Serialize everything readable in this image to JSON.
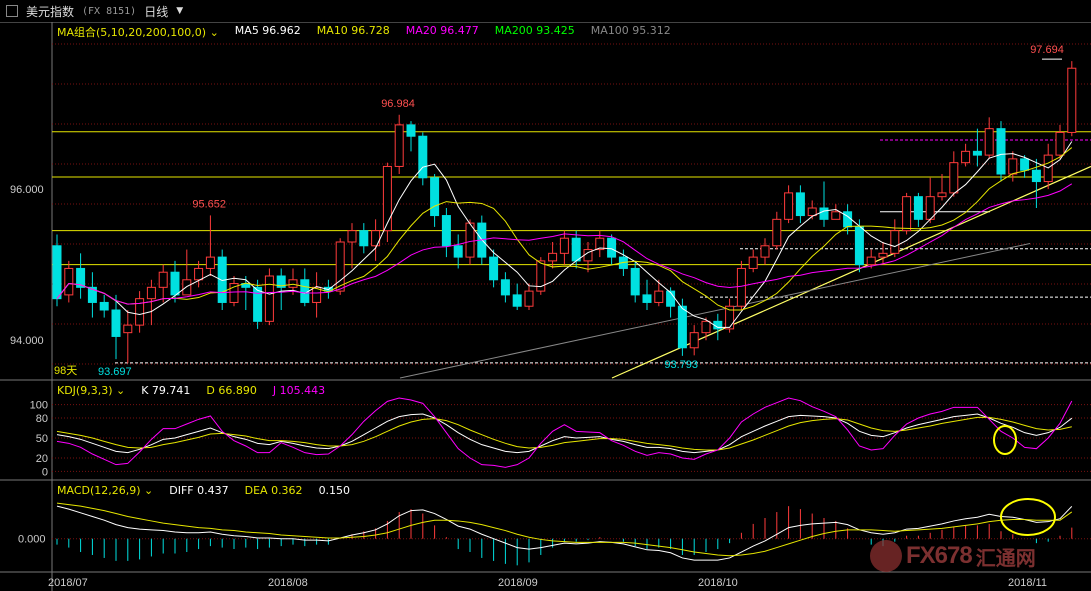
{
  "window": {
    "title": "美元指数",
    "code": "(FX 8151)",
    "period": "日线"
  },
  "colors": {
    "up": "#ff3b3b",
    "down": "#00e0e0",
    "ma5": "#ffffff",
    "ma10": "#e6e600",
    "ma20": "#ff00ff",
    "ma200": "#00ff00",
    "ma100": "#888888",
    "grid": "#7a1010",
    "hline": "#e6e600",
    "k": "#ffffff",
    "d": "#e6e600",
    "j": "#ff00ff"
  },
  "indicators": {
    "ma_group": "MA组合(5,10,20,200,100,0)",
    "ma5": "MA5 96.962",
    "ma10": "MA10 96.728",
    "ma20": "MA20 96.477",
    "ma200": "MA200 93.425",
    "ma100": "MA100 95.312",
    "kdj": "KDJ(9,3,3)",
    "k": "K 79.741",
    "d": "D 66.890",
    "j": "J 105.443",
    "macd": "MACD(12,26,9)",
    "diff": "DIFF 0.437",
    "dea": "DEA 0.362",
    "macd_val": "0.150"
  },
  "watermark": {
    "text": "FX678",
    "text2": "汇通网"
  },
  "chart_data": [
    {
      "type": "candlestick",
      "price_axis": {
        "ticks": [
          96.0,
          94.0
        ],
        "tick_labels": [
          "96.000",
          "94.000"
        ]
      },
      "x_axis": {
        "ticks": [
          "2018/07",
          "2018/08",
          "2018/09",
          "2018/10",
          "2018/11"
        ]
      },
      "annotations": [
        {
          "label": "97.694",
          "value": 97.694,
          "kind": "high",
          "bar": 84
        },
        {
          "label": "96.984",
          "value": 96.984,
          "kind": "high",
          "bar": 29
        },
        {
          "label": "95.652",
          "value": 95.652,
          "kind": "high",
          "bar": 13
        },
        {
          "label": "93.697",
          "value": 93.697,
          "kind": "low",
          "bar": 5
        },
        {
          "label": "93.793",
          "value": 93.793,
          "kind": "low",
          "bar": 53
        },
        {
          "label": "98天",
          "kind": "text"
        }
      ],
      "horizontal_lines": [
        96.76,
        96.16,
        95.45,
        95.0
      ],
      "candles": [
        [
          95.25,
          94.55,
          95.4,
          94.45
        ],
        [
          94.6,
          94.95,
          95.05,
          94.5
        ],
        [
          94.95,
          94.7,
          95.15,
          94.55
        ],
        [
          94.7,
          94.5,
          94.9,
          94.3
        ],
        [
          94.5,
          94.4,
          94.6,
          94.3
        ],
        [
          94.4,
          94.05,
          94.6,
          93.75
        ],
        [
          94.1,
          94.2,
          94.4,
          93.697
        ],
        [
          94.2,
          94.55,
          94.65,
          94.1
        ],
        [
          94.55,
          94.7,
          94.8,
          94.2
        ],
        [
          94.7,
          94.9,
          95.0,
          94.5
        ],
        [
          94.9,
          94.6,
          95.05,
          94.5
        ],
        [
          94.6,
          94.8,
          95.2,
          94.6
        ],
        [
          94.8,
          94.95,
          95.05,
          94.7
        ],
        [
          94.95,
          95.1,
          95.652,
          94.85
        ],
        [
          95.1,
          94.5,
          95.2,
          94.4
        ],
        [
          94.5,
          94.75,
          94.85,
          94.45
        ],
        [
          94.75,
          94.7,
          94.85,
          94.4
        ],
        [
          94.7,
          94.25,
          94.8,
          94.15
        ],
        [
          94.25,
          94.85,
          94.95,
          94.2
        ],
        [
          94.85,
          94.7,
          94.95,
          94.4
        ],
        [
          94.7,
          94.8,
          94.95,
          94.6
        ],
        [
          94.8,
          94.5,
          94.95,
          94.45
        ],
        [
          94.5,
          94.7,
          94.9,
          94.3
        ],
        [
          94.7,
          94.65,
          94.8,
          94.55
        ],
        [
          94.65,
          95.3,
          95.35,
          94.6
        ],
        [
          95.3,
          95.45,
          95.55,
          94.95
        ],
        [
          95.45,
          95.25,
          95.55,
          95.15
        ],
        [
          95.25,
          95.45,
          95.6,
          95.05
        ],
        [
          95.45,
          96.3,
          96.35,
          95.3
        ],
        [
          96.3,
          96.85,
          96.984,
          96.2
        ],
        [
          96.85,
          96.7,
          96.9,
          96.5
        ],
        [
          96.7,
          96.15,
          96.75,
          96.05
        ],
        [
          96.15,
          95.65,
          96.2,
          95.5
        ],
        [
          95.65,
          95.25,
          95.75,
          95.1
        ],
        [
          95.25,
          95.1,
          95.4,
          94.95
        ],
        [
          95.1,
          95.55,
          95.6,
          95.0
        ],
        [
          95.55,
          95.1,
          95.65,
          95.0
        ],
        [
          95.1,
          94.8,
          95.2,
          94.7
        ],
        [
          94.8,
          94.6,
          94.9,
          94.5
        ],
        [
          94.6,
          94.45,
          94.75,
          94.4
        ],
        [
          94.45,
          94.65,
          94.75,
          94.4
        ],
        [
          94.65,
          95.05,
          95.1,
          94.6
        ],
        [
          95.05,
          95.15,
          95.3,
          94.95
        ],
        [
          95.15,
          95.35,
          95.45,
          95.0
        ],
        [
          95.35,
          95.05,
          95.45,
          94.95
        ],
        [
          95.05,
          95.2,
          95.3,
          94.9
        ],
        [
          95.2,
          95.35,
          95.45,
          95.1
        ],
        [
          95.35,
          95.1,
          95.4,
          95.0
        ],
        [
          95.1,
          94.95,
          95.2,
          94.85
        ],
        [
          94.95,
          94.6,
          95.05,
          94.5
        ],
        [
          94.6,
          94.5,
          94.8,
          94.4
        ],
        [
          94.5,
          94.65,
          94.8,
          94.45
        ],
        [
          94.65,
          94.45,
          94.7,
          94.3
        ],
        [
          94.45,
          93.9,
          94.55,
          93.793
        ],
        [
          93.9,
          94.1,
          94.2,
          93.8
        ],
        [
          94.1,
          94.25,
          94.3,
          94.0
        ],
        [
          94.25,
          94.15,
          94.35,
          94.0
        ],
        [
          94.15,
          94.45,
          94.55,
          94.1
        ],
        [
          94.45,
          94.95,
          95.05,
          94.4
        ],
        [
          94.95,
          95.1,
          95.2,
          94.9
        ],
        [
          95.1,
          95.25,
          95.35,
          95.0
        ],
        [
          95.25,
          95.6,
          95.7,
          95.2
        ],
        [
          95.6,
          95.95,
          96.05,
          95.55
        ],
        [
          95.95,
          95.65,
          96.05,
          95.55
        ],
        [
          95.65,
          95.75,
          95.85,
          95.6
        ],
        [
          95.75,
          95.6,
          96.1,
          95.5
        ],
        [
          95.6,
          95.7,
          95.8,
          95.6
        ],
        [
          95.7,
          95.5,
          95.8,
          95.4
        ],
        [
          95.5,
          95.0,
          95.6,
          94.9
        ],
        [
          95.0,
          95.1,
          95.2,
          94.95
        ],
        [
          95.1,
          95.15,
          95.3,
          95.0
        ],
        [
          95.15,
          95.45,
          95.6,
          95.1
        ],
        [
          95.45,
          95.9,
          95.95,
          95.4
        ],
        [
          95.9,
          95.6,
          95.95,
          95.5
        ],
        [
          95.6,
          95.9,
          96.15,
          95.55
        ],
        [
          95.9,
          95.95,
          96.2,
          95.85
        ],
        [
          95.95,
          96.35,
          96.5,
          95.9
        ],
        [
          96.35,
          96.5,
          96.6,
          96.3
        ],
        [
          96.5,
          96.45,
          96.8,
          96.3
        ],
        [
          96.45,
          96.8,
          96.95,
          96.4
        ],
        [
          96.8,
          96.2,
          96.9,
          96.1
        ],
        [
          96.2,
          96.4,
          96.5,
          96.1
        ],
        [
          96.4,
          96.25,
          96.45,
          96.15
        ],
        [
          96.25,
          96.1,
          96.4,
          95.75
        ],
        [
          96.1,
          96.45,
          96.6,
          96.0
        ],
        [
          96.45,
          96.75,
          96.85,
          96.4
        ],
        [
          96.75,
          97.6,
          97.694,
          96.7
        ]
      ]
    },
    {
      "type": "line",
      "name": "KDJ",
      "y_ticks": [
        100,
        80,
        50,
        20,
        0
      ],
      "series": [
        {
          "name": "K",
          "values": [
            55,
            52,
            48,
            42,
            36,
            30,
            28,
            33,
            40,
            48,
            50,
            55,
            60,
            65,
            58,
            52,
            48,
            42,
            40,
            45,
            42,
            38,
            35,
            34,
            38,
            45,
            55,
            65,
            75,
            82,
            85,
            86,
            80,
            70,
            58,
            48,
            40,
            35,
            30,
            28,
            30,
            38,
            46,
            52,
            50,
            51,
            52,
            48,
            45,
            40,
            36,
            36,
            34,
            30,
            28,
            30,
            32,
            40,
            52,
            60,
            68,
            75,
            82,
            84,
            83,
            82,
            80,
            72,
            60,
            54,
            52,
            58,
            65,
            70,
            74,
            78,
            82,
            84,
            86,
            80,
            72,
            66,
            58,
            54,
            58,
            66,
            79.741
          ]
        },
        {
          "name": "D",
          "values": [
            60,
            57,
            54,
            50,
            45,
            40,
            36,
            35,
            36,
            40,
            43,
            47,
            51,
            56,
            57,
            55,
            53,
            49,
            46,
            46,
            45,
            43,
            40,
            38,
            38,
            40,
            45,
            52,
            60,
            68,
            74,
            78,
            79,
            76,
            70,
            62,
            55,
            48,
            42,
            37,
            35,
            36,
            39,
            43,
            45,
            47,
            49,
            49,
            48,
            45,
            42,
            40,
            38,
            35,
            33,
            32,
            32,
            35,
            41,
            47,
            54,
            61,
            68,
            73,
            76,
            78,
            79,
            77,
            71,
            65,
            61,
            60,
            62,
            65,
            68,
            72,
            75,
            78,
            81,
            81,
            78,
            74,
            69,
            64,
            62,
            63,
            66.89
          ]
        },
        {
          "name": "J",
          "values": [
            45,
            42,
            36,
            26,
            18,
            10,
            12,
            29,
            48,
            64,
            64,
            71,
            78,
            83,
            60,
            46,
            38,
            28,
            28,
            43,
            36,
            28,
            25,
            26,
            38,
            55,
            75,
            91,
            105,
            110,
            107,
            102,
            82,
            58,
            34,
            20,
            10,
            9,
            6,
            10,
            20,
            42,
            60,
            70,
            60,
            59,
            58,
            46,
            39,
            30,
            24,
            28,
            26,
            20,
            18,
            26,
            32,
            50,
            74,
            86,
            96,
            103,
            110,
            106,
            97,
            90,
            82,
            62,
            38,
            32,
            34,
            54,
            71,
            80,
            86,
            90,
            96,
            96,
            96,
            78,
            60,
            50,
            36,
            34,
            50,
            72,
            105.443
          ]
        }
      ]
    },
    {
      "type": "line+bar",
      "name": "MACD",
      "y_ticks": [
        0.0
      ],
      "y_tick_labels": [
        "0.000"
      ],
      "series": [
        {
          "name": "DIFF",
          "values": [
            0.44,
            0.4,
            0.35,
            0.3,
            0.25,
            0.19,
            0.15,
            0.13,
            0.12,
            0.11,
            0.09,
            0.08,
            0.08,
            0.09,
            0.06,
            0.04,
            0.03,
            0.01,
            0.01,
            0.0,
            0.0,
            -0.02,
            -0.02,
            -0.03,
            0.01,
            0.05,
            0.08,
            0.12,
            0.2,
            0.31,
            0.38,
            0.39,
            0.34,
            0.26,
            0.17,
            0.13,
            0.06,
            0.0,
            -0.06,
            -0.12,
            -0.14,
            -0.12,
            -0.09,
            -0.06,
            -0.07,
            -0.06,
            -0.04,
            -0.05,
            -0.07,
            -0.11,
            -0.15,
            -0.16,
            -0.19,
            -0.26,
            -0.29,
            -0.29,
            -0.29,
            -0.26,
            -0.18,
            -0.1,
            -0.03,
            0.06,
            0.15,
            0.18,
            0.2,
            0.21,
            0.22,
            0.19,
            0.12,
            0.08,
            0.06,
            0.08,
            0.13,
            0.14,
            0.17,
            0.2,
            0.24,
            0.27,
            0.29,
            0.33,
            0.3,
            0.29,
            0.26,
            0.22,
            0.23,
            0.27,
            0.437
          ]
        },
        {
          "name": "DEA",
          "values": [
            0.48,
            0.46,
            0.44,
            0.41,
            0.38,
            0.34,
            0.3,
            0.27,
            0.24,
            0.21,
            0.19,
            0.17,
            0.15,
            0.14,
            0.12,
            0.11,
            0.09,
            0.08,
            0.07,
            0.05,
            0.04,
            0.03,
            0.02,
            0.01,
            0.01,
            0.02,
            0.03,
            0.05,
            0.08,
            0.13,
            0.18,
            0.22,
            0.25,
            0.25,
            0.24,
            0.22,
            0.19,
            0.15,
            0.11,
            0.06,
            0.02,
            -0.01,
            -0.03,
            -0.04,
            -0.05,
            -0.05,
            -0.05,
            -0.05,
            -0.05,
            -0.06,
            -0.08,
            -0.1,
            -0.12,
            -0.15,
            -0.18,
            -0.2,
            -0.22,
            -0.23,
            -0.22,
            -0.2,
            -0.17,
            -0.12,
            -0.07,
            -0.02,
            0.03,
            0.07,
            0.1,
            0.12,
            0.12,
            0.12,
            0.11,
            0.1,
            0.11,
            0.12,
            0.13,
            0.14,
            0.16,
            0.18,
            0.2,
            0.23,
            0.25,
            0.26,
            0.26,
            0.25,
            0.25,
            0.25,
            0.362
          ]
        },
        {
          "name": "MACD",
          "values": [
            -0.08,
            -0.12,
            -0.18,
            -0.22,
            -0.26,
            -0.3,
            -0.3,
            -0.28,
            -0.24,
            -0.2,
            -0.2,
            -0.18,
            -0.14,
            -0.1,
            -0.12,
            -0.14,
            -0.12,
            -0.14,
            -0.12,
            -0.1,
            -0.08,
            -0.1,
            -0.08,
            -0.08,
            0.0,
            0.06,
            0.1,
            0.14,
            0.24,
            0.36,
            0.4,
            0.34,
            0.18,
            0.02,
            -0.14,
            -0.18,
            -0.26,
            -0.3,
            -0.34,
            -0.36,
            -0.32,
            -0.22,
            -0.12,
            -0.04,
            -0.04,
            -0.02,
            0.02,
            0.0,
            -0.04,
            -0.1,
            -0.14,
            -0.12,
            -0.14,
            -0.22,
            -0.22,
            -0.18,
            -0.14,
            -0.06,
            0.08,
            0.2,
            0.28,
            0.36,
            0.44,
            0.4,
            0.34,
            0.28,
            0.24,
            0.14,
            0.0,
            -0.08,
            -0.1,
            -0.04,
            0.04,
            0.04,
            0.08,
            0.12,
            0.16,
            0.18,
            0.18,
            0.2,
            0.1,
            0.06,
            0.0,
            -0.06,
            -0.04,
            0.04,
            0.15
          ]
        }
      ]
    }
  ]
}
